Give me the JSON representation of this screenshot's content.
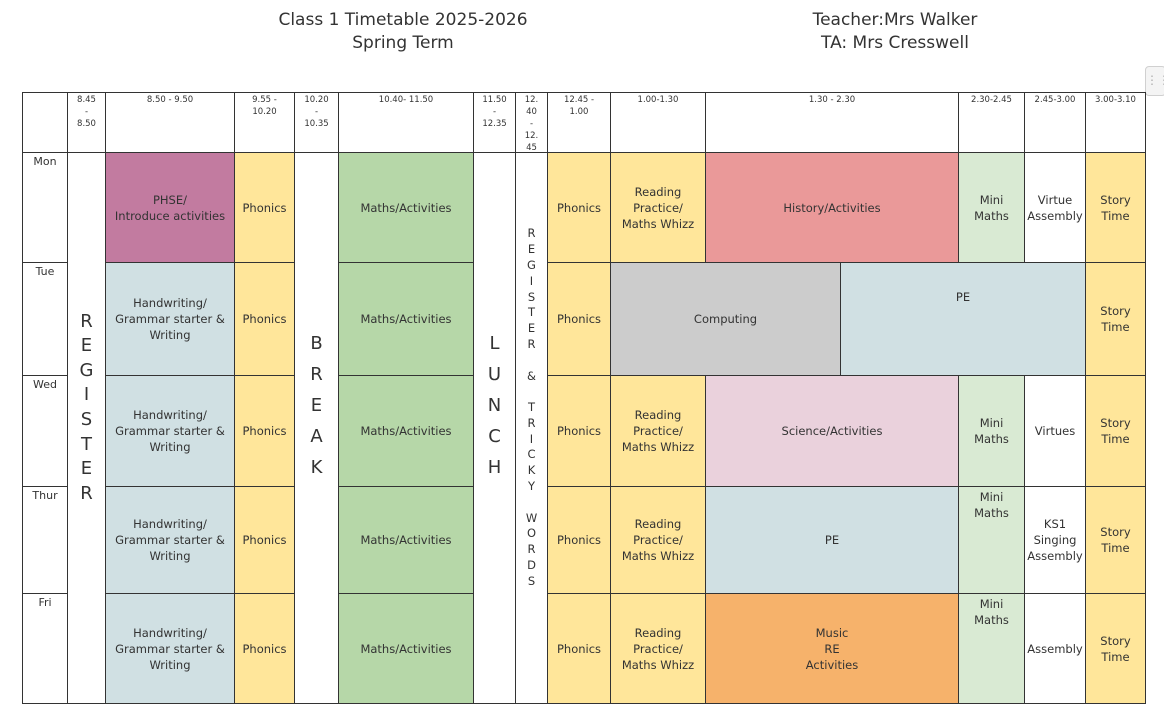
{
  "header": {
    "title_line1": "Class 1 Timetable  2025-2026",
    "title_line2": "Spring Term",
    "teacher": "Teacher:Mrs Walker",
    "ta": "TA: Mrs Cresswell"
  },
  "colors": {
    "phonics": "#ffe69a",
    "maths": "#b6d7a8",
    "handwriting": "#d0e0e3",
    "phse": "#c27ba0",
    "history": "#ea9999",
    "mini_maths": "#d9ead3",
    "computing": "#cccccc",
    "pe": "#d0e0e3",
    "science": "#ead1dc",
    "music": "#f6b26b",
    "white": "#ffffff"
  },
  "times": [
    "",
    "8.45\n-\n8.50",
    "8.50 - 9.50",
    "9.55 -\n10.20",
    "10.20\n-\n10.35",
    "10.40- 11.50",
    "11.50\n-\n12.35",
    "12.\n40\n-\n12.\n45",
    "12.45 -\n1.00",
    "1.00-1.30",
    "1.30 - 2.30",
    "2.30-2.45",
    "2.45-3.00",
    "3.00-3.10"
  ],
  "days": [
    "Mon",
    "Tue",
    "Wed",
    "Thur",
    "Fri"
  ],
  "fixed": {
    "register": "R\nE\nG\nI\nS\nT\nE\nR",
    "break": "B\nR\nE\nA\nK",
    "lunch": "L\nU\nN\nC\nH",
    "register_tricky": "R\nE\nG\nI\nS\nT\nE\nR\n\n&\n\nT\nR\nI\nC\nK\nY\n\nW\nO\nR\nD\nS"
  },
  "cells": {
    "mon": {
      "morning": "PHSE/\nIntroduce activities",
      "phonics": "Phonics",
      "maths": "Maths/Activities",
      "phonics2": "Phonics",
      "reading": "Reading\nPractice/\nMaths Whizz",
      "afternoon": "History/Activities",
      "mini": "Mini\nMaths",
      "slot": "Virtue\nAssembly",
      "story": "Story\nTime"
    },
    "tue": {
      "morning": "Handwriting/\nGrammar starter &\nWriting",
      "phonics": "Phonics",
      "maths": "Maths/Activities",
      "phonics2": "Phonics",
      "computing": "Computing",
      "pe": "PE",
      "story": "Story\nTime"
    },
    "wed": {
      "morning": "Handwriting/\nGrammar starter &\nWriting",
      "phonics": "Phonics",
      "maths": "Maths/Activities",
      "phonics2": "Phonics",
      "reading": "Reading\nPractice/\nMaths Whizz",
      "afternoon": "Science/Activities",
      "mini": "Mini\nMaths",
      "slot": "Virtues",
      "story": "Story\nTime"
    },
    "thu": {
      "morning": "Handwriting/\nGrammar starter &\nWriting",
      "phonics": "Phonics",
      "maths": "Maths/Activities",
      "phonics2": "Phonics",
      "reading": "Reading\nPractice/\nMaths Whizz",
      "afternoon": "PE",
      "mini": "Mini\nMaths",
      "slot": "KS1\nSinging\nAssembly",
      "story": "Story\nTime"
    },
    "fri": {
      "morning": "Handwriting/\nGrammar starter &\nWriting",
      "phonics": "Phonics",
      "maths": "Maths/Activities",
      "phonics2": "Phonics",
      "reading": "Reading\nPractice/\nMaths Whizz",
      "afternoon": "Music\nRE\nActivities",
      "mini": "Mini\nMaths",
      "slot": "Assembly",
      "story": "Story\nTime"
    }
  }
}
